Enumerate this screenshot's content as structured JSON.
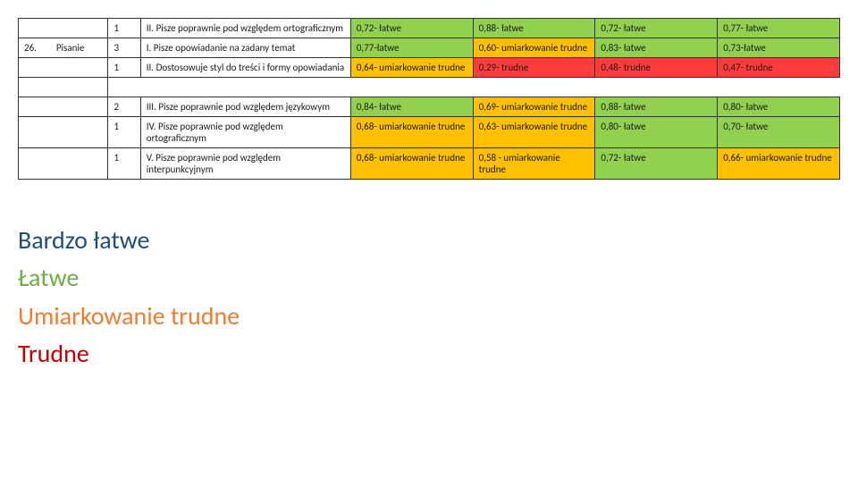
{
  "colors": {
    "green": "#92d050",
    "orange": "#ffc000",
    "red": "#ff3b3b",
    "none": "#ffffff"
  },
  "columns": {
    "c0": 34,
    "c1": 60,
    "c2": 34,
    "c3": 220,
    "c4": 128,
    "c5": 128,
    "c6": 128,
    "c7": 128
  },
  "rows": [
    {
      "c0": "",
      "c1": "",
      "c2": "1",
      "c3": "II. Pisze poprawnie pod względem ortograficznym",
      "c4": {
        "text": "0,72- łatwe",
        "bg": "green"
      },
      "c5": {
        "text": "0,88- łatwe",
        "bg": "green"
      },
      "c6": {
        "text": "0,72- łatwe",
        "bg": "green"
      },
      "c7": {
        "text": "0,77- łatwe",
        "bg": "green"
      },
      "leadEmpty": true
    },
    {
      "c0": "26.",
      "c1": "Pisanie",
      "c2": "3",
      "c3": "I. Pisze opowiadanie na zadany temat",
      "c4": {
        "text": "0,77-łatwe",
        "bg": "green"
      },
      "c5": {
        "text": "0,60-\numiarkowanie trudne",
        "bg": "orange"
      },
      "c6": {
        "text": "0,83- łatwe",
        "bg": "green"
      },
      "c7": {
        "text": "0,73-łatwe",
        "bg": "green"
      }
    },
    {
      "c0": "",
      "c1": "",
      "c2": "1",
      "c3": "II. Dostosowuje styl do treści i formy opowiadania",
      "c4": {
        "text": "0,64- umiarkowanie trudne",
        "bg": "orange"
      },
      "c5": {
        "text": "0,29- trudne",
        "bg": "red"
      },
      "c6": {
        "text": "0,48- trudne",
        "bg": "red"
      },
      "c7": {
        "text": "0,47- trudne",
        "bg": "red"
      },
      "leadEmpty": true
    },
    {
      "spacer": true
    },
    {
      "c0": "",
      "c1": "",
      "c2": "2",
      "c3": "III. Pisze poprawnie pod względem językowym",
      "c4": {
        "text": "0,84- łatwe",
        "bg": "green"
      },
      "c5": {
        "text": "0,69-\numiarkowanie trudne",
        "bg": "orange"
      },
      "c6": {
        "text": "0,88- łatwe",
        "bg": "green"
      },
      "c7": {
        "text": "0,80- łatwe",
        "bg": "green"
      },
      "leadEmpty": true
    },
    {
      "c0": "",
      "c1": "",
      "c2": "1",
      "c3": "IV. Pisze poprawnie pod względem ortograficznym",
      "c4": {
        "text": "0,68- umiarkowanie trudne",
        "bg": "orange"
      },
      "c5": {
        "text": "0,63-\numiarkowanie trudne",
        "bg": "orange"
      },
      "c6": {
        "text": "0,80- łatwe",
        "bg": "green"
      },
      "c7": {
        "text": "0,70- łatwe",
        "bg": "green"
      },
      "leadEmpty": true
    },
    {
      "c0": "",
      "c1": "",
      "c2": "1",
      "c3": "V. Pisze poprawnie pod względem interpunkcyjnym",
      "c4": {
        "text": "0,68- umiarkowanie trudne",
        "bg": "orange"
      },
      "c5": {
        "text": "0,58 -\numiarkowanie trudne",
        "bg": "orange"
      },
      "c6": {
        "text": "0,72- łatwe",
        "bg": "green"
      },
      "c7": {
        "text": "0,66-\numiarkowanie trudne",
        "bg": "orange"
      },
      "leadEmpty": true
    }
  ],
  "legend": [
    {
      "text": "Bardzo łatwe",
      "color": "#1f4e79"
    },
    {
      "text": "Łatwe",
      "color": "#70ad47"
    },
    {
      "text": "Umiarkowanie trudne",
      "color": "#ed7d31"
    },
    {
      "text": "Trudne",
      "color": "#c00000"
    }
  ]
}
